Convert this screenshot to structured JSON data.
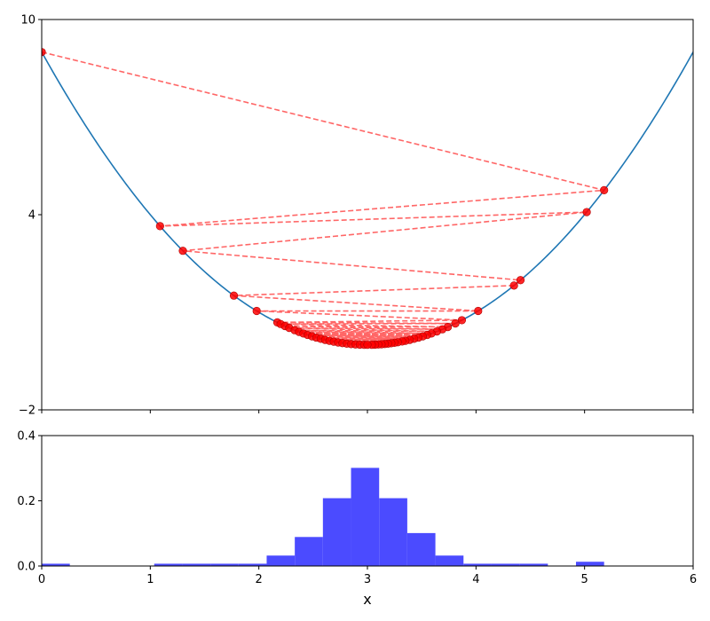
{
  "chart_data": [
    {
      "type": "line",
      "title": "",
      "xlabel": "",
      "ylabel": "",
      "xlim": [
        0,
        6
      ],
      "ylim": [
        -2,
        10
      ],
      "xticks": [
        0,
        1,
        2,
        3,
        4,
        5,
        6
      ],
      "yticks": [
        -2,
        4,
        10
      ],
      "ytick_labels": [
        "−2",
        "4",
        "10"
      ],
      "grid": false,
      "curve": {
        "function": "(x-3)^2",
        "color": "#1f77b4"
      },
      "iterates": {
        "color": "#ff0000",
        "line_style": "dashed",
        "x": [
          0.0,
          5.18,
          1.09,
          5.02,
          1.3,
          4.41,
          4.35,
          1.77,
          4.02,
          1.98,
          3.87,
          2.17,
          3.81,
          2.2,
          3.74,
          2.24,
          3.69,
          2.28,
          3.64,
          2.33,
          3.59,
          2.37,
          3.55,
          2.41,
          3.51,
          2.45,
          3.47,
          2.49,
          3.43,
          2.53,
          3.39,
          2.57,
          3.35,
          2.61,
          3.32,
          2.65,
          3.28,
          2.69,
          3.25,
          2.73,
          3.22,
          2.77,
          3.19,
          2.81,
          3.16,
          2.85,
          3.13,
          2.89,
          3.1,
          2.93,
          3.07,
          2.97,
          3.04,
          3.0
        ]
      }
    },
    {
      "type": "bar",
      "title": "",
      "xlabel": "x",
      "ylabel": "",
      "xlim": [
        0,
        6
      ],
      "ylim": [
        0,
        0.4
      ],
      "xticks": [
        0,
        1,
        2,
        3,
        4,
        5,
        6
      ],
      "yticks": [
        0.0,
        0.2,
        0.4
      ],
      "ytick_labels": [
        "0.0",
        "0.2",
        "0.4"
      ],
      "grid": false,
      "color": "#4b4bff",
      "bin_edges": [
        0.0,
        0.259,
        0.518,
        0.777,
        1.036,
        1.295,
        1.554,
        1.813,
        2.072,
        2.331,
        2.59,
        2.849,
        3.108,
        3.367,
        3.626,
        3.885,
        4.144,
        4.403,
        4.662,
        4.921,
        5.18
      ],
      "values": [
        0.007,
        0.0,
        0.0,
        0.0,
        0.007,
        0.007,
        0.007,
        0.007,
        0.032,
        0.089,
        0.208,
        0.301,
        0.208,
        0.101,
        0.032,
        0.007,
        0.007,
        0.007,
        0.0,
        0.013
      ]
    }
  ]
}
